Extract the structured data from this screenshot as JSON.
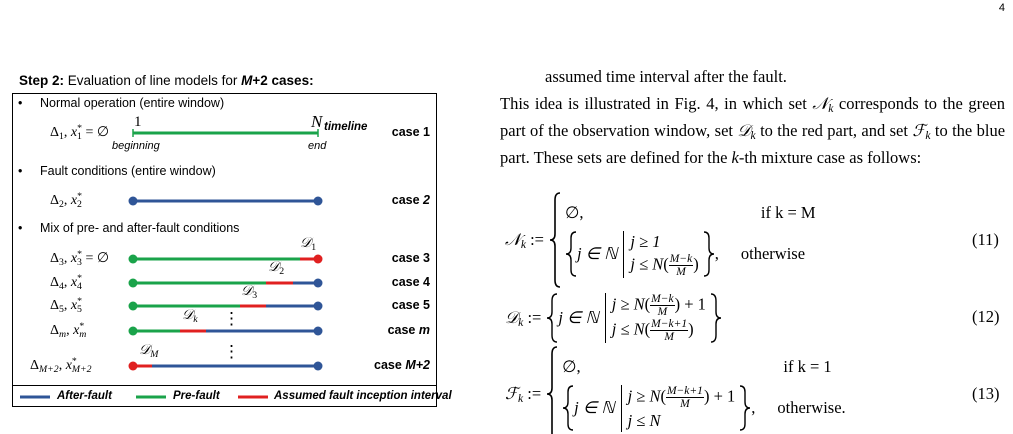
{
  "page_number": "4",
  "figure": {
    "title": [
      "Step 2:",
      "Evaluation of line models for",
      "M",
      "+2 cases:"
    ],
    "bullet": "•",
    "sections": [
      "Normal operation (entire window)",
      "Fault conditions (entire window)",
      "Mix of pre- and after-fault conditions"
    ],
    "symbols": {
      "delta": "Δ",
      "x": "x",
      "star": "*",
      "comma": ",",
      "empty_eq": "= ∅",
      "d": "𝒟",
      "dots": "⋮",
      "case": "case"
    },
    "timeline": {
      "start": "1",
      "end_index": "N",
      "label": "timeline",
      "beginning": "beginning",
      "end": "end"
    },
    "rows": [
      {
        "index": "1",
        "case": "1"
      },
      {
        "index": "2",
        "case": "2"
      },
      {
        "index": "3",
        "case": "3",
        "d_index": "1"
      },
      {
        "index": "4",
        "case": "4",
        "d_index": "2"
      },
      {
        "index": "5",
        "case": "5",
        "d_index": "3"
      },
      {
        "index": "m",
        "case": "m",
        "d_index": "k"
      },
      {
        "index": "M+2",
        "case": "M+2",
        "d_index": "M"
      }
    ],
    "legend": [
      "After-fault",
      "Pre-fault",
      "Assumed fault inception interval"
    ]
  },
  "text": {
    "continued": "assumed time interval after the fault.",
    "paragraph": [
      "This idea is illustrated in Fig. 4, in which set",
      "𝒩",
      "k",
      "corresponds to the green part of the observation window, set",
      "𝒟",
      "k",
      "to the red part, and set",
      "ℱ",
      "k",
      "to the blue part. These sets are defined for the",
      "k",
      "-th mixture case as follows:"
    ]
  },
  "parens": [
    "(",
    ")"
  ],
  "equations": [
    {
      "symbol": "𝒩",
      "sub": "k",
      "assign": ":=",
      "cases": [
        {
          "value": "∅,",
          "condition": "if k = M"
        },
        {
          "prefix": "j ∈ ℕ",
          "conds": [
            "j ≥ 1",
            {
              "lhs": "j ≤ N",
              "num": "M−k",
              "den": "M"
            }
          ],
          "suffix": ",",
          "condition": "otherwise"
        }
      ],
      "number": "(11)"
    },
    {
      "symbol": "𝒟",
      "sub": "k",
      "assign": ":=",
      "prefix": "j ∈ ℕ",
      "conds": [
        {
          "lhs": "j ≥ N",
          "num": "M−k",
          "den": "M",
          "after": "+ 1"
        },
        {
          "lhs": "j ≤ N",
          "num": "M−k+1",
          "den": "M"
        }
      ],
      "number": "(12)"
    },
    {
      "symbol": "ℱ",
      "sub": "k",
      "assign": ":=",
      "cases": [
        {
          "value": "∅,",
          "condition": "if k = 1"
        },
        {
          "prefix": "j ∈ ℕ",
          "conds": [
            {
              "lhs": "j ≥ N",
              "num": "M−k+1",
              "den": "M",
              "after": "+ 1"
            },
            "j ≤ N"
          ],
          "suffix": ",",
          "condition": "otherwise."
        }
      ],
      "number": "(13)"
    }
  ]
}
